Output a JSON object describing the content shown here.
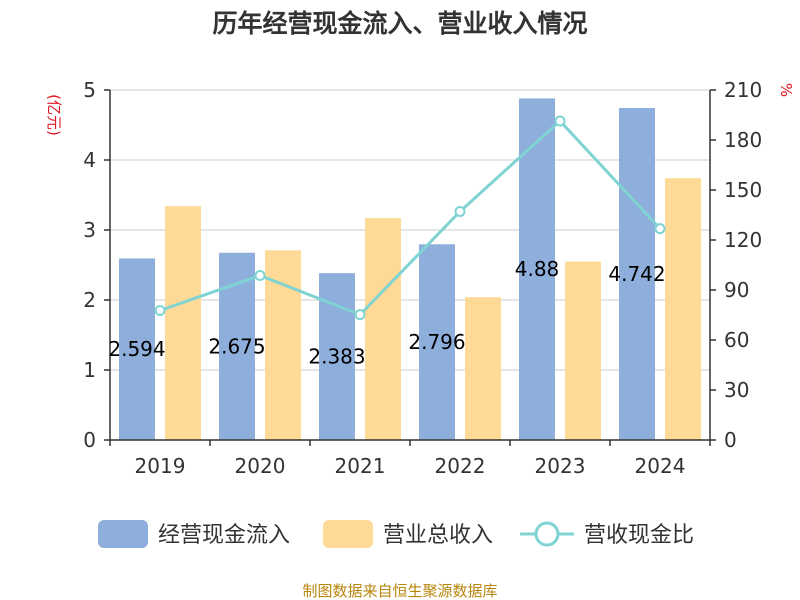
{
  "chart_data": {
    "type": "bar",
    "title": "历年经营现金流入、营业收入情况",
    "categories": [
      "2019",
      "2020",
      "2021",
      "2022",
      "2023",
      "2024"
    ],
    "left_axis": {
      "label": "(亿元)",
      "range": [
        0,
        5
      ],
      "ticks": [
        0,
        1,
        2,
        3,
        4,
        5
      ]
    },
    "right_axis": {
      "label": "%",
      "range": [
        0,
        210
      ],
      "ticks": [
        0,
        30,
        60,
        90,
        120,
        150,
        180,
        210
      ]
    },
    "series": [
      {
        "name": "经营现金流入",
        "type": "bar",
        "axis": "left",
        "color": "#8eaedb",
        "values": [
          2.594,
          2.675,
          2.383,
          2.796,
          4.88,
          4.742
        ],
        "data_labels": [
          "2.594",
          "2.675",
          "2.383",
          "2.796",
          "4.88",
          "4.742"
        ]
      },
      {
        "name": "营业总收入",
        "type": "bar",
        "axis": "left",
        "color": "#ffd996",
        "values": [
          3.34,
          2.71,
          3.17,
          2.04,
          2.55,
          3.74
        ]
      },
      {
        "name": "营收现金比",
        "type": "line",
        "axis": "right",
        "color": "#7fd3d3",
        "values": [
          77.7,
          98.7,
          75.2,
          137.1,
          191.4,
          126.8
        ]
      }
    ],
    "grid": true,
    "legend_position": "bottom"
  },
  "source_text": "制图数据来自恒生聚源数据库"
}
